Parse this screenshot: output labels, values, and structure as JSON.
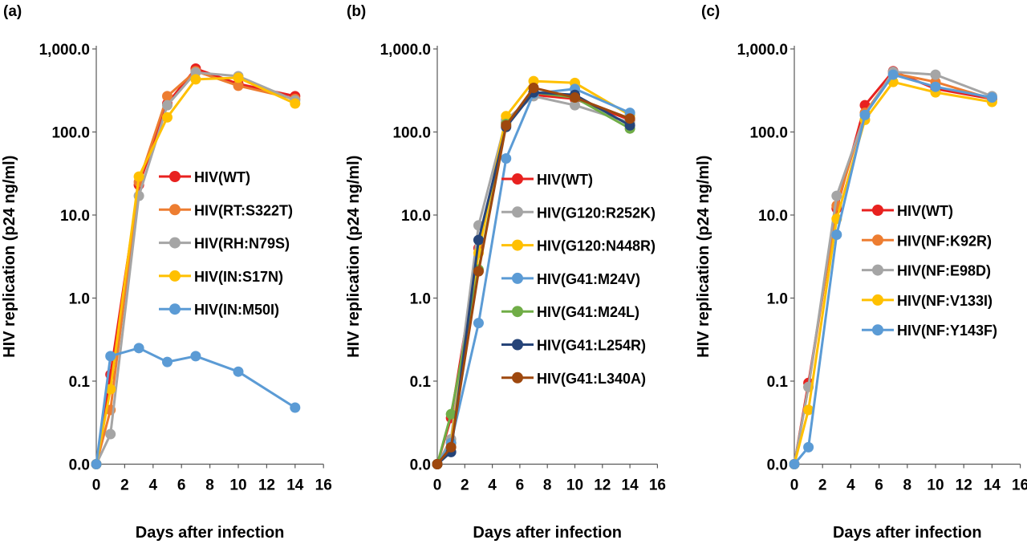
{
  "colors": {
    "red": "#E8211F",
    "orange": "#ED7D31",
    "gray": "#A5A5A5",
    "yellow": "#FFC000",
    "lightblue": "#5B9BD5",
    "green": "#70AD47",
    "navy": "#264478",
    "brown": "#9E480E"
  },
  "chart_data": [
    {
      "type": "line",
      "panel_label": "(a)",
      "title": "",
      "xlabel": "Days after infection",
      "ylabel": "HIV replication (p24 ng/ml)",
      "yscale": "log",
      "xlim": [
        0,
        16
      ],
      "x_ticks": [
        "0",
        "2",
        "4",
        "6",
        "8",
        "10",
        "12",
        "14",
        "16"
      ],
      "y_ticks": [
        "0.0",
        "0.1",
        "1.0",
        "10.0",
        "100.0",
        "1,000.0"
      ],
      "legend_position": "center-right",
      "x": [
        0,
        1,
        3,
        5,
        7,
        10,
        14
      ],
      "series": [
        {
          "name": "HIV(WT)",
          "color_key": "red",
          "values": [
            0.01,
            0.12,
            23,
            220,
            580,
            380,
            270
          ]
        },
        {
          "name": "HIV(RT:S322T)",
          "color_key": "orange",
          "values": [
            0.01,
            0.045,
            25,
            270,
            540,
            360,
            250
          ]
        },
        {
          "name": "HIV(RH:N79S)",
          "color_key": "gray",
          "values": [
            0.01,
            0.023,
            17,
            210,
            520,
            470,
            240
          ]
        },
        {
          "name": "HIV(IN:S17N)",
          "color_key": "yellow",
          "values": [
            0.01,
            0.08,
            29,
            150,
            430,
            450,
            220
          ]
        },
        {
          "name": "HIV(IN:M50I)",
          "color_key": "lightblue",
          "values": [
            0.01,
            0.2,
            0.25,
            0.17,
            0.2,
            0.13,
            0.048
          ]
        }
      ]
    },
    {
      "type": "line",
      "panel_label": "(b)",
      "title": "",
      "xlabel": "Days after infection",
      "ylabel": "HIV replication (p24 ng/ml)",
      "yscale": "log",
      "xlim": [
        0,
        16
      ],
      "x_ticks": [
        "0",
        "2",
        "4",
        "6",
        "8",
        "10",
        "12",
        "14",
        "16"
      ],
      "y_ticks": [
        "0.0",
        "0.1",
        "1.0",
        "10.0",
        "100.0",
        "1,000.0"
      ],
      "legend_position": "center-right",
      "x": [
        0,
        1,
        3,
        5,
        7,
        10,
        14
      ],
      "series": [
        {
          "name": "HIV(WT)",
          "color_key": "red",
          "values": [
            0.01,
            0.036,
            4,
            130,
            280,
            250,
            140
          ]
        },
        {
          "name": "HIV(G120:R252K)",
          "color_key": "gray",
          "values": [
            0.01,
            0.02,
            7.5,
            140,
            270,
            210,
            130
          ]
        },
        {
          "name": "HIV(G120:N448R)",
          "color_key": "yellow",
          "values": [
            0.01,
            0.018,
            3.5,
            155,
            410,
            390,
            160
          ]
        },
        {
          "name": "HIV(G41:M24V)",
          "color_key": "lightblue",
          "values": [
            0.01,
            0.018,
            0.5,
            48,
            290,
            330,
            170
          ]
        },
        {
          "name": "HIV(G41:M24L)",
          "color_key": "green",
          "values": [
            0.01,
            0.04,
            2.2,
            125,
            300,
            260,
            110
          ]
        },
        {
          "name": "HIV(G41:L254R)",
          "color_key": "navy",
          "values": [
            0.01,
            0.014,
            5,
            115,
            300,
            280,
            120
          ]
        },
        {
          "name": "HIV(G41:L340A)",
          "color_key": "brown",
          "values": [
            0.01,
            0.016,
            2.1,
            120,
            340,
            260,
            145
          ]
        }
      ]
    },
    {
      "type": "line",
      "panel_label": "(c)",
      "title": "",
      "xlabel": "Days after infection",
      "ylabel": "HIV replication (p24 ng/ml)",
      "yscale": "log",
      "xlim": [
        0,
        16
      ],
      "x_ticks": [
        "0",
        "2",
        "4",
        "6",
        "8",
        "10",
        "12",
        "14",
        "16"
      ],
      "y_ticks": [
        "0.0",
        "0.1",
        "1.0",
        "10.0",
        "100.0",
        "1,000.0"
      ],
      "legend_position": "center-right",
      "x": [
        0,
        1,
        3,
        5,
        7,
        10,
        14
      ],
      "series": [
        {
          "name": "HIV(WT)",
          "color_key": "red",
          "values": [
            0.01,
            0.095,
            12,
            210,
            540,
            330,
            250
          ]
        },
        {
          "name": "HIV(NF:K92R)",
          "color_key": "orange",
          "values": [
            0.01,
            0.085,
            13,
            170,
            510,
            400,
            250
          ]
        },
        {
          "name": "HIV(NF:E98D)",
          "color_key": "gray",
          "values": [
            0.01,
            0.085,
            17,
            160,
            530,
            490,
            270
          ]
        },
        {
          "name": "HIV(NF:V133I)",
          "color_key": "yellow",
          "values": [
            0.01,
            0.045,
            9,
            140,
            400,
            300,
            230
          ]
        },
        {
          "name": "HIV(NF:Y143F)",
          "color_key": "lightblue",
          "values": [
            0.01,
            0.016,
            5.8,
            160,
            490,
            350,
            260
          ]
        }
      ]
    }
  ]
}
